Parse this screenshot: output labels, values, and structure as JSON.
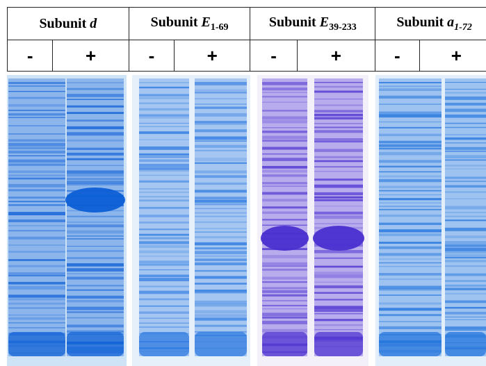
{
  "panels": [
    {
      "prefix": "Subunit",
      "symbol": "d",
      "lanes": [
        "-",
        "+"
      ]
    },
    {
      "prefix": "Subunit",
      "symbol": "E",
      "subscript": "1-69",
      "lanes": [
        "-",
        "+"
      ]
    },
    {
      "prefix": "Subunit",
      "symbol": "E",
      "subscript": "39-233",
      "lanes": [
        "-",
        "+"
      ]
    },
    {
      "prefix": "Subunit",
      "symbol": "a",
      "subscript": "1-72",
      "lanes": [
        "-",
        "+"
      ]
    }
  ]
}
